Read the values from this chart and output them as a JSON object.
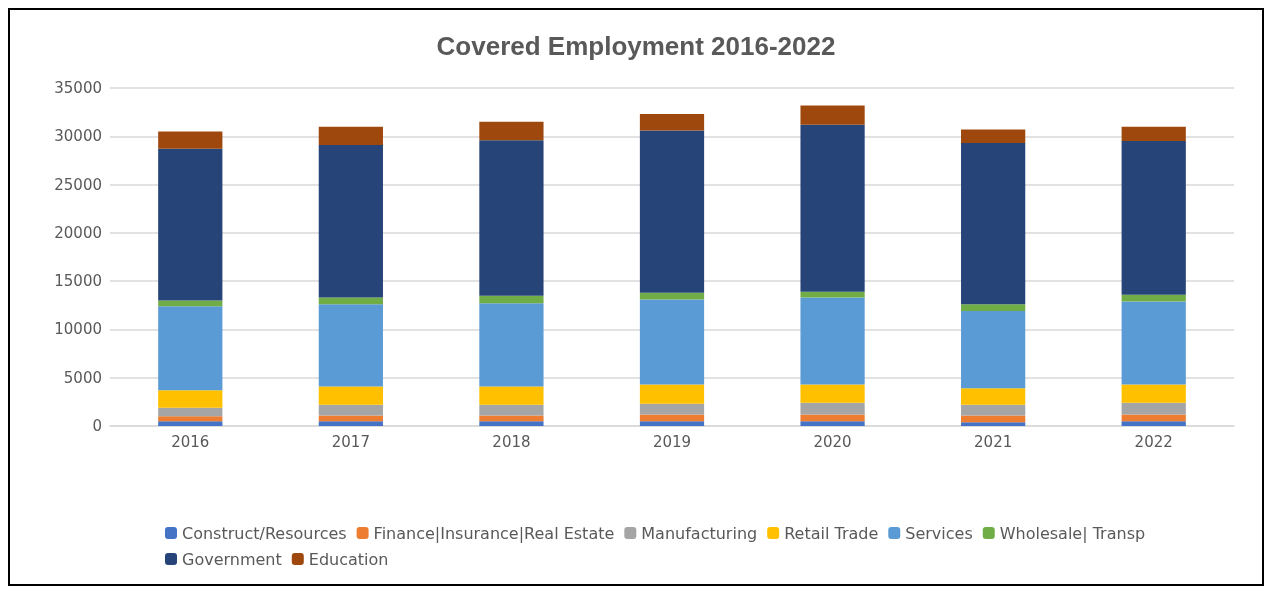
{
  "chart_data": {
    "type": "bar",
    "title": "Covered Employment 2016-2022",
    "stacked": true,
    "categories": [
      "2016",
      "2017",
      "2018",
      "2019",
      "2020",
      "2021",
      "2022"
    ],
    "series": [
      {
        "name": "Construct/Resources",
        "color": "#4472c4",
        "values": [
          500,
          500,
          500,
          500,
          500,
          400,
          500
        ]
      },
      {
        "name": "Finance|Insurance|Real Estate",
        "color": "#ed7d31",
        "values": [
          500,
          600,
          600,
          700,
          700,
          700,
          700
        ]
      },
      {
        "name": "Manufacturing",
        "color": "#a5a5a5",
        "values": [
          900,
          1100,
          1100,
          1100,
          1200,
          1100,
          1200
        ]
      },
      {
        "name": "Retail Trade",
        "color": "#ffc000",
        "values": [
          1800,
          1900,
          1900,
          2000,
          1900,
          1700,
          1900
        ]
      },
      {
        "name": "Services",
        "color": "#5b9bd5",
        "values": [
          8700,
          8500,
          8600,
          8800,
          9000,
          8000,
          8600
        ]
      },
      {
        "name": "Wholesale| Transp",
        "color": "#70ad47",
        "values": [
          600,
          700,
          800,
          700,
          600,
          700,
          700
        ]
      },
      {
        "name": "Government",
        "color": "#264478",
        "values": [
          15700,
          15800,
          16100,
          16800,
          17300,
          16700,
          15900
        ]
      },
      {
        "name": "Education",
        "color": "#9e480e",
        "values": [
          1800,
          1900,
          1900,
          1700,
          2000,
          1400,
          1500
        ]
      }
    ],
    "ylim": [
      0,
      35000
    ],
    "yticks": [
      0,
      5000,
      10000,
      15000,
      20000,
      25000,
      30000,
      35000
    ],
    "grid": "y",
    "legend": "bottom"
  }
}
